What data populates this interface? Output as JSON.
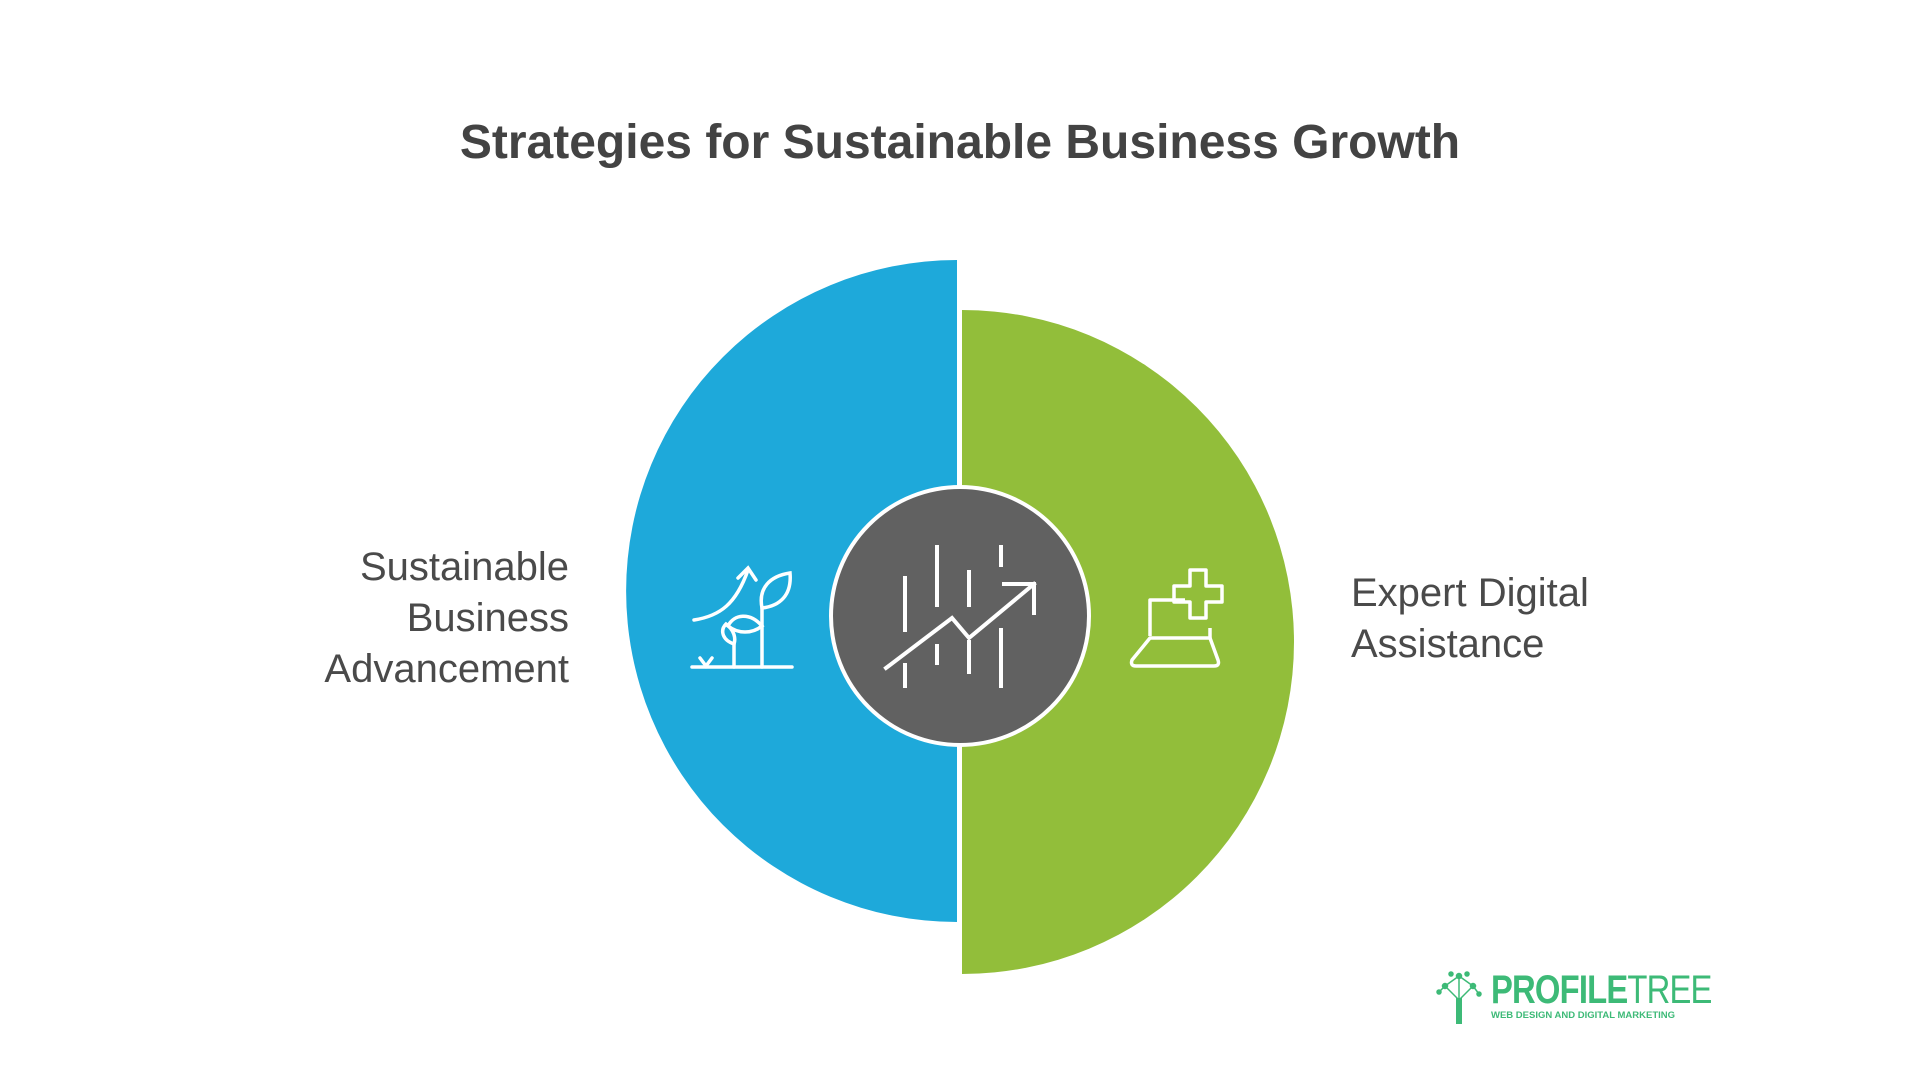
{
  "title": "Strategies for Sustainable Business Growth",
  "segments": [
    {
      "label_lines": [
        "Sustainable",
        "Business",
        "Advancement"
      ],
      "color": "#1EA9DA",
      "icon": "plant-growth-icon"
    },
    {
      "label_lines": [
        "Expert Digital",
        "Assistance"
      ],
      "color": "#92BE3A",
      "icon": "laptop-plus-icon"
    }
  ],
  "center": {
    "color": "#616161",
    "icon": "growth-chart-icon"
  },
  "logo": {
    "name_bold": "PROFILE",
    "name_light": "TREE",
    "tagline": "WEB DESIGN AND DIGITAL MARKETING",
    "color": "#3DBA77"
  }
}
